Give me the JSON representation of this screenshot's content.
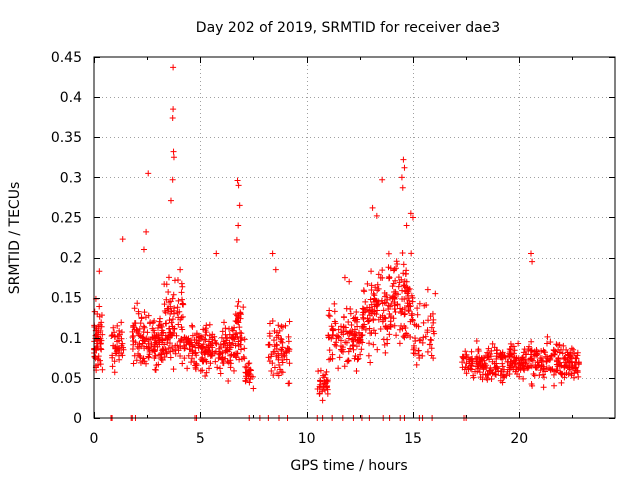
{
  "chart_data": {
    "type": "scatter",
    "title": "Day 202 of 2019, SRMTID for receiver dae3",
    "xlabel": "GPS time / hours",
    "ylabel": "SRMTID / TECUs",
    "xlim": [
      0,
      24.5
    ],
    "ylim": [
      0,
      0.45
    ],
    "xticks": [
      0,
      5,
      10,
      15,
      20
    ],
    "yticks": [
      0,
      0.05,
      0.1,
      0.15,
      0.2,
      0.25,
      0.3,
      0.35,
      0.4,
      0.45
    ],
    "xtick_labels": [
      "0",
      "5",
      "10",
      "15",
      "20"
    ],
    "ytick_labels": [
      "0",
      "0.05",
      "0.1",
      "0.15",
      "0.2",
      "0.25",
      "0.3",
      "0.35",
      "0.4",
      "0.45"
    ],
    "grid": true,
    "marker": "plus",
    "color": "#ff0000",
    "series": [
      {
        "name": "SRMTID",
        "clusters": [
          {
            "x": [
              0.0,
              0.4
            ],
            "y_center": 0.1,
            "spread": 0.035,
            "count": 55
          },
          {
            "x": [
              0.8,
              1.4
            ],
            "y_center": 0.09,
            "spread": 0.03,
            "count": 40
          },
          {
            "x": [
              1.8,
              3.3
            ],
            "y_center": 0.1,
            "spread": 0.03,
            "count": 140
          },
          {
            "x": [
              3.3,
              4.2
            ],
            "y_center": 0.12,
            "spread": 0.045,
            "count": 90
          },
          {
            "x": [
              4.2,
              5.0
            ],
            "y_center": 0.09,
            "spread": 0.03,
            "count": 60
          },
          {
            "x": [
              5.0,
              6.5
            ],
            "y_center": 0.085,
            "spread": 0.03,
            "count": 120
          },
          {
            "x": [
              6.5,
              7.1
            ],
            "y_center": 0.1,
            "spread": 0.04,
            "count": 55
          },
          {
            "x": [
              7.1,
              7.5
            ],
            "y_center": 0.055,
            "spread": 0.015,
            "count": 25
          },
          {
            "x": [
              8.2,
              9.2
            ],
            "y_center": 0.085,
            "spread": 0.03,
            "count": 70
          },
          {
            "x": [
              10.5,
              11.0
            ],
            "y_center": 0.045,
            "spread": 0.015,
            "count": 30
          },
          {
            "x": [
              11.0,
              12.6
            ],
            "y_center": 0.1,
            "spread": 0.035,
            "count": 110
          },
          {
            "x": [
              12.6,
              13.8
            ],
            "y_center": 0.13,
            "spread": 0.04,
            "count": 100
          },
          {
            "x": [
              13.8,
              15.0
            ],
            "y_center": 0.15,
            "spread": 0.05,
            "count": 110
          },
          {
            "x": [
              15.0,
              16.0
            ],
            "y_center": 0.1,
            "spread": 0.035,
            "count": 45
          },
          {
            "x": [
              17.3,
              22.8
            ],
            "y_center": 0.07,
            "spread": 0.022,
            "count": 380
          }
        ],
        "points": [
          [
            3.72,
            0.437
          ],
          [
            3.72,
            0.385
          ],
          [
            3.7,
            0.374
          ],
          [
            3.74,
            0.332
          ],
          [
            3.76,
            0.325
          ],
          [
            3.7,
            0.297
          ],
          [
            3.62,
            0.271
          ],
          [
            2.55,
            0.305
          ],
          [
            2.45,
            0.232
          ],
          [
            2.35,
            0.21
          ],
          [
            6.75,
            0.296
          ],
          [
            6.8,
            0.29
          ],
          [
            6.85,
            0.265
          ],
          [
            6.78,
            0.24
          ],
          [
            6.72,
            0.222
          ],
          [
            5.75,
            0.205
          ],
          [
            1.35,
            0.223
          ],
          [
            0.25,
            0.183
          ],
          [
            8.4,
            0.205
          ],
          [
            8.55,
            0.185
          ],
          [
            14.55,
            0.322
          ],
          [
            14.6,
            0.312
          ],
          [
            14.48,
            0.3
          ],
          [
            14.52,
            0.287
          ],
          [
            13.55,
            0.297
          ],
          [
            14.9,
            0.255
          ],
          [
            15.0,
            0.25
          ],
          [
            14.7,
            0.24
          ],
          [
            13.1,
            0.262
          ],
          [
            13.3,
            0.252
          ],
          [
            15.7,
            0.16
          ],
          [
            16.05,
            0.155
          ],
          [
            20.55,
            0.205
          ],
          [
            20.6,
            0.195
          ],
          [
            11.8,
            0.175
          ],
          [
            12.0,
            0.17
          ],
          [
            10.6,
            0.03
          ],
          [
            10.75,
            0.022
          ],
          [
            4.05,
            0.185
          ],
          [
            3.95,
            0.172
          ]
        ],
        "zero_x": [
          0.8,
          0.85,
          1.75,
          1.8,
          1.95,
          4.75,
          4.82,
          7.3,
          7.8,
          8.2,
          8.7,
          9.1,
          10.5,
          10.75,
          11.2,
          11.7,
          12.2,
          12.6,
          12.95,
          13.6,
          13.9,
          14.4,
          14.6,
          15.3,
          15.45,
          15.9,
          17.4,
          17.5
        ]
      }
    ]
  }
}
